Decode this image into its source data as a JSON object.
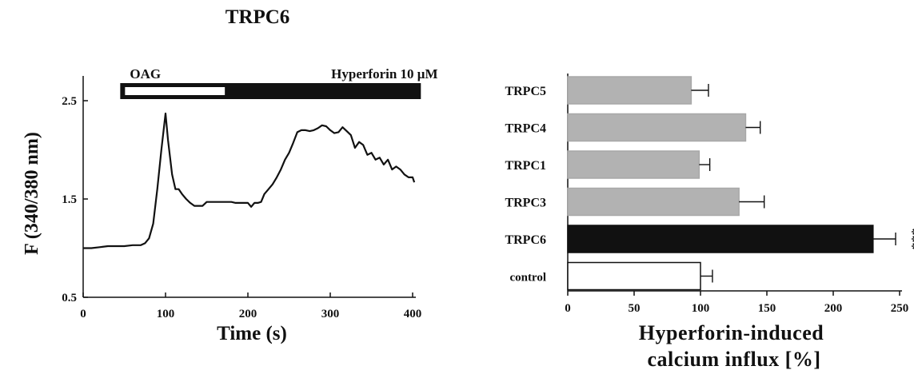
{
  "chart_data": [
    {
      "type": "line",
      "title": "TRPC6",
      "xlabel": "Time (s)",
      "ylabel": "F (340/380 nm)",
      "xlim": [
        0,
        400
      ],
      "ylim": [
        0.5,
        2.5
      ],
      "x_ticks": [
        "0",
        "100",
        "200",
        "300",
        "400"
      ],
      "y_ticks": [
        "0.5",
        "1.5",
        "2.5"
      ],
      "grid": false,
      "treatment_bars": [
        {
          "label": "OAG",
          "start": 45,
          "end": 172,
          "fill": "white"
        },
        {
          "label": "Hyperforin 10 μM",
          "start": 172,
          "end": 410,
          "fill": "black"
        }
      ],
      "series": [
        {
          "x": [
            0,
            10,
            20,
            30,
            40,
            50,
            60,
            70,
            75,
            80,
            85,
            90,
            95,
            100,
            103,
            108,
            112,
            116,
            120,
            125,
            130,
            135,
            140,
            145,
            150,
            155,
            160,
            165,
            170,
            175,
            180,
            185,
            190,
            195,
            200,
            204,
            208,
            212,
            216,
            220,
            225,
            230,
            235,
            240,
            245,
            250,
            255,
            260,
            265,
            270,
            275,
            280,
            285,
            290,
            295,
            300,
            305,
            310,
            315,
            320,
            325,
            330,
            335,
            340,
            345,
            350,
            355,
            360,
            365,
            370,
            375,
            380,
            385,
            390,
            395,
            400,
            402
          ],
          "y": [
            1.0,
            1.0,
            1.01,
            1.02,
            1.02,
            1.02,
            1.03,
            1.03,
            1.05,
            1.1,
            1.25,
            1.6,
            2.0,
            2.37,
            2.1,
            1.75,
            1.6,
            1.6,
            1.55,
            1.5,
            1.46,
            1.43,
            1.43,
            1.43,
            1.47,
            1.47,
            1.47,
            1.47,
            1.47,
            1.47,
            1.47,
            1.46,
            1.46,
            1.46,
            1.46,
            1.42,
            1.46,
            1.46,
            1.47,
            1.55,
            1.6,
            1.65,
            1.72,
            1.8,
            1.9,
            1.97,
            2.07,
            2.18,
            2.2,
            2.2,
            2.19,
            2.2,
            2.22,
            2.25,
            2.24,
            2.2,
            2.17,
            2.18,
            2.23,
            2.19,
            2.15,
            2.02,
            2.08,
            2.05,
            1.95,
            1.97,
            1.9,
            1.92,
            1.85,
            1.9,
            1.8,
            1.83,
            1.8,
            1.75,
            1.72,
            1.72,
            1.67
          ]
        }
      ]
    },
    {
      "type": "bar",
      "orientation": "horizontal",
      "xlabel": "Hyperforin-induced\ncalcium influx [%]",
      "xlim": [
        0,
        250
      ],
      "x_ticks": [
        "0",
        "50",
        "100",
        "150",
        "200",
        "250"
      ],
      "categories": [
        "TRPC5",
        "TRPC4",
        "TRPC1",
        "TRPC3",
        "TRPC6",
        "control"
      ],
      "values": [
        93,
        134,
        99,
        129,
        230,
        100
      ],
      "errors": [
        13,
        11,
        8,
        19,
        17,
        9
      ],
      "colors": [
        "#b2b2b2",
        "#b2b2b2",
        "#b2b2b2",
        "#b2b2b2",
        "#111111",
        "#ffffff"
      ],
      "annotations": [
        {
          "category": "TRPC6",
          "text": "***"
        }
      ]
    }
  ]
}
